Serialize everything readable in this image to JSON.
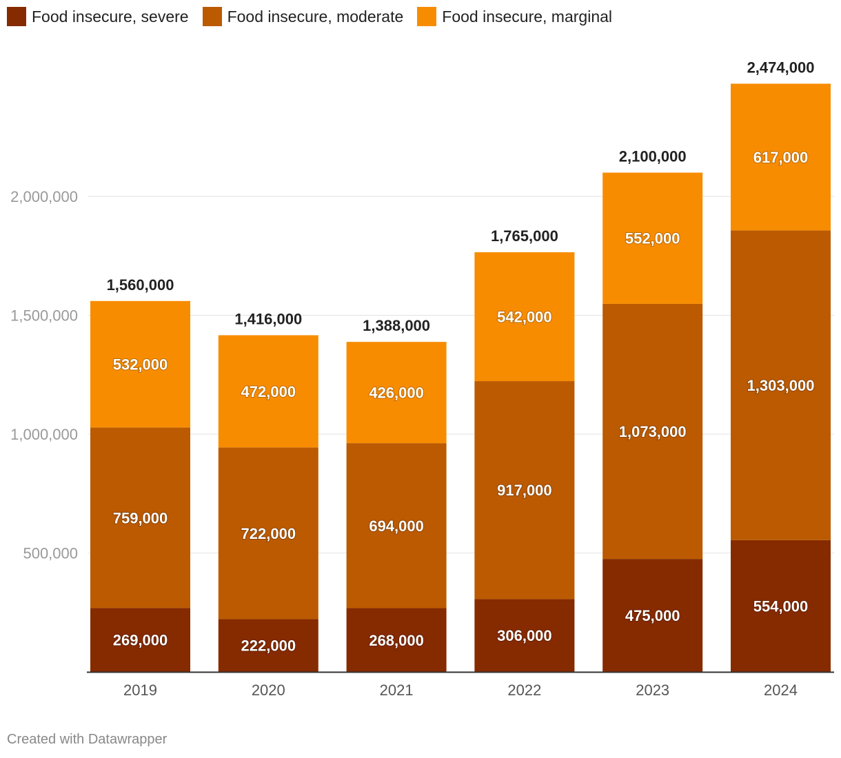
{
  "legend": [
    {
      "label": "Food insecure, severe",
      "color": "#862a00"
    },
    {
      "label": "Food insecure, moderate",
      "color": "#bb5a00"
    },
    {
      "label": "Food insecure, marginal",
      "color": "#f88c00"
    }
  ],
  "chart_data": {
    "type": "bar",
    "stacked": true,
    "title": "",
    "xlabel": "",
    "ylabel": "",
    "categories": [
      "2019",
      "2020",
      "2021",
      "2022",
      "2023",
      "2024"
    ],
    "series": [
      {
        "name": "Food insecure, severe",
        "values": [
          269000,
          222000,
          268000,
          306000,
          475000,
          554000
        ],
        "labels": [
          "269,000",
          "222,000",
          "268,000",
          "306,000",
          "475,000",
          "554,000"
        ],
        "color": "#862a00"
      },
      {
        "name": "Food insecure, moderate",
        "values": [
          759000,
          722000,
          694000,
          917000,
          1073000,
          1303000
        ],
        "labels": [
          "759,000",
          "722,000",
          "694,000",
          "917,000",
          "1,073,000",
          "1,303,000"
        ],
        "color": "#bb5a00"
      },
      {
        "name": "Food insecure, marginal",
        "values": [
          532000,
          472000,
          426000,
          542000,
          552000,
          617000
        ],
        "labels": [
          "532,000",
          "472,000",
          "426,000",
          "542,000",
          "552,000",
          "617,000"
        ],
        "color": "#f88c00"
      }
    ],
    "totals": [
      1560000,
      1416000,
      1388000,
      1765000,
      2100000,
      2474000
    ],
    "total_labels": [
      "1,560,000",
      "1,416,000",
      "1,388,000",
      "1,765,000",
      "2,100,000",
      "2,474,000"
    ],
    "yticks": [
      500000,
      1000000,
      1500000,
      2000000
    ],
    "ytick_labels": [
      "500,000",
      "1,000,000",
      "1,500,000",
      "2,000,000"
    ],
    "ylim": [
      0,
      2500000
    ],
    "grid": true
  },
  "footer": "Created with Datawrapper"
}
